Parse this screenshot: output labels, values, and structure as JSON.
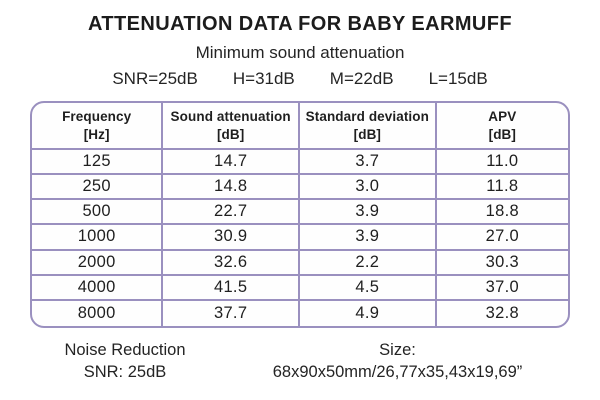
{
  "colors": {
    "table_border": "#9a90bf",
    "text": "#1f1f1f",
    "background": "#ffffff"
  },
  "header": {
    "title": "ATTENUATION DATA FOR BABY EARMUFF",
    "subtitle": "Minimum sound attenuation",
    "summary": [
      "SNR=25dB",
      "H=31dB",
      "M=22dB",
      "L=15dB"
    ]
  },
  "table": {
    "columns": [
      {
        "label": "Frequency",
        "unit": "[Hz]"
      },
      {
        "label": "Sound attenuation",
        "unit": "[dB]"
      },
      {
        "label": "Standard deviation",
        "unit": "[dB]"
      },
      {
        "label": "APV",
        "unit": "[dB]"
      }
    ],
    "rows": [
      [
        "125",
        "14.7",
        "3.7",
        "11.0"
      ],
      [
        "250",
        "14.8",
        "3.0",
        "11.8"
      ],
      [
        "500",
        "22.7",
        "3.9",
        "18.8"
      ],
      [
        "1000",
        "30.9",
        "3.9",
        "27.0"
      ],
      [
        "2000",
        "32.6",
        "2.2",
        "30.3"
      ],
      [
        "4000",
        "41.5",
        "4.5",
        "37.0"
      ],
      [
        "8000",
        "37.7",
        "4.9",
        "32.8"
      ]
    ]
  },
  "footer": {
    "noise_reduction_line1": "Noise Reduction",
    "noise_reduction_line2": "SNR: 25dB",
    "size_label": "Size:",
    "size_value": "68x90x50mm/26,77x35,43x19,69”"
  },
  "chart_data": {
    "type": "table",
    "title": "ATTENUATION DATA FOR BABY EARMUFF",
    "subtitle": "Minimum sound attenuation",
    "summary": {
      "SNR": "25dB",
      "H": "31dB",
      "M": "22dB",
      "L": "15dB"
    },
    "columns": [
      "Frequency [Hz]",
      "Sound attenuation [dB]",
      "Standard deviation [dB]",
      "APV [dB]"
    ],
    "rows": [
      [
        125,
        14.7,
        3.7,
        11.0
      ],
      [
        250,
        14.8,
        3.0,
        11.8
      ],
      [
        500,
        22.7,
        3.9,
        18.8
      ],
      [
        1000,
        30.9,
        3.9,
        27.0
      ],
      [
        2000,
        32.6,
        2.2,
        30.3
      ],
      [
        4000,
        41.5,
        4.5,
        37.0
      ],
      [
        8000,
        37.7,
        4.9,
        32.8
      ]
    ],
    "noise_reduction": "SNR: 25dB",
    "size": "68x90x50mm/26,77x35,43x19,69\""
  }
}
